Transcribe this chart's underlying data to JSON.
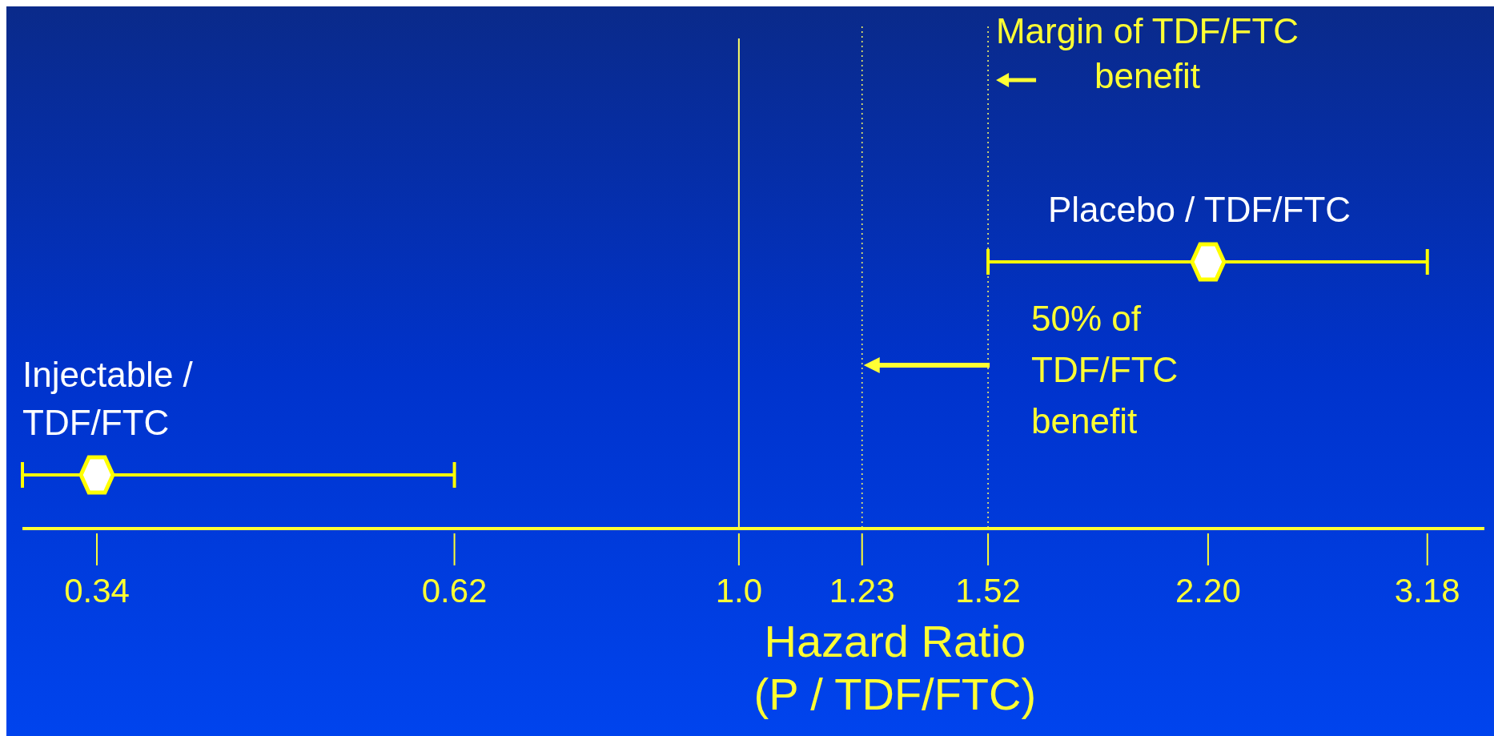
{
  "chart_data": {
    "type": "scatter",
    "orientation": "horizontal",
    "log": "x",
    "marker": "diamond",
    "xlabel": "Hazard Ratio\n(P / TDF/FTC)",
    "categories": [
      null,
      null
    ],
    "xlim": [
      0.3,
      3.5
    ],
    "xticks": [
      0.34,
      0.62,
      {
        "value": 1,
        "label": "1.0"
      },
      1.23,
      1.52,
      {
        "value": 2.2,
        "label": "2.20"
      },
      3.18
    ],
    "series": [
      {
        "name": "Placebo / TDF/FTC",
        "color": "#ffff00",
        "values": [
          2.2,
          null
        ],
        "errors": [
          [
            1.52,
            3.18
          ],
          null
        ]
      },
      {
        "name": "Injectable /\nTDF/FTC",
        "color": "#ffff00",
        "values": [
          null,
          0.34
        ],
        "errors": [
          null,
          [
            0.3,
            0.62
          ]
        ]
      }
    ],
    "ref_lines": [
      {
        "axis": "x",
        "value": 1,
        "label": null,
        "color": "#ffff66",
        "line_style": "solid"
      },
      {
        "axis": "x",
        "value": 1.23,
        "label": null,
        "color": "#ffff66",
        "line_style": "dotted"
      },
      {
        "axis": "x",
        "value": 1.52,
        "label": null,
        "color": "#ffff66",
        "line_style": "dotted"
      }
    ],
    "annotations": [
      "Margin of TDF/FTC\nbenefit",
      "50% of\nTDF/FTC\nbenefit"
    ]
  }
}
